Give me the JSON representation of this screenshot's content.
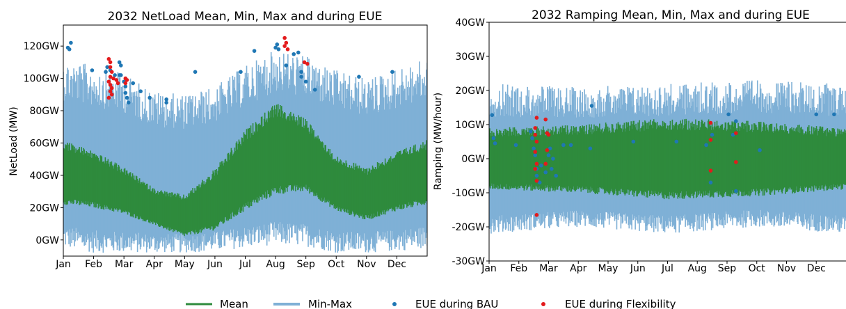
{
  "colors": {
    "mean": "#2e8b3d",
    "minmax": "#7fb0d6",
    "eue_bau": "#1f77b4",
    "eue_flex": "#e31a1c"
  },
  "legend": {
    "mean": "Mean",
    "minmax": "Min-Max",
    "eue_bau": "EUE during BAU",
    "eue_flex": "EUE during Flexibility"
  },
  "chart_data": [
    {
      "type": "area",
      "title": "2032 NetLoad Mean, Min, Max and during EUE",
      "xlabel": "",
      "ylabel": "NetLoad (MW)",
      "x_ticks": [
        "Jan",
        "Feb",
        "Mar",
        "Apr",
        "May",
        "Jun",
        "Jul",
        "Aug",
        "Sep",
        "Oct",
        "Nov",
        "Dec"
      ],
      "y_ticks": [
        "0GW",
        "20GW",
        "40GW",
        "60GW",
        "80GW",
        "100GW",
        "120GW"
      ],
      "y_tick_values": [
        0,
        20,
        40,
        60,
        80,
        100,
        120
      ],
      "ylim": [
        -10,
        133
      ],
      "xlim_month": [
        0,
        12
      ],
      "grid": false,
      "series": [
        {
          "name": "Mean",
          "kind": "band",
          "month": [
            0,
            1,
            2,
            3,
            4,
            5,
            6,
            7,
            8,
            9,
            10,
            11,
            12
          ],
          "low": [
            22,
            20,
            16,
            9,
            2,
            6,
            18,
            28,
            30,
            18,
            12,
            18,
            22
          ],
          "high": [
            62,
            55,
            45,
            32,
            28,
            44,
            68,
            85,
            75,
            52,
            45,
            55,
            62
          ]
        },
        {
          "name": "Min-Max",
          "kind": "band",
          "month": [
            0,
            1,
            2,
            3,
            4,
            5,
            6,
            7,
            8,
            9,
            10,
            11,
            12
          ],
          "low": [
            -5,
            -8,
            -8,
            -8,
            -8,
            -7,
            -5,
            -3,
            -4,
            -8,
            -8,
            -7,
            -5
          ],
          "high": [
            112,
            108,
            103,
            92,
            90,
            95,
            108,
            118,
            114,
            105,
            100,
            106,
            112
          ]
        },
        {
          "name": "EUE during BAU",
          "kind": "points",
          "points": [
            [
              0.15,
              119
            ],
            [
              0.25,
              122
            ],
            [
              0.2,
              118
            ],
            [
              0.95,
              105
            ],
            [
              1.4,
              104
            ],
            [
              1.45,
              107
            ],
            [
              1.55,
              105
            ],
            [
              1.7,
              102
            ],
            [
              1.85,
              102
            ],
            [
              1.85,
              110
            ],
            [
              1.9,
              108
            ],
            [
              1.9,
              102
            ],
            [
              2.0,
              98
            ],
            [
              2.05,
              95
            ],
            [
              2.05,
              91
            ],
            [
              2.1,
              88
            ],
            [
              2.15,
              85
            ],
            [
              2.3,
              97
            ],
            [
              2.55,
              92
            ],
            [
              2.85,
              88
            ],
            [
              3.4,
              87
            ],
            [
              3.4,
              85
            ],
            [
              4.35,
              104
            ],
            [
              5.85,
              104
            ],
            [
              6.3,
              117
            ],
            [
              7.0,
              119
            ],
            [
              7.05,
              121
            ],
            [
              7.1,
              118
            ],
            [
              7.35,
              108
            ],
            [
              7.6,
              115
            ],
            [
              7.75,
              116
            ],
            [
              7.85,
              104
            ],
            [
              7.85,
              101
            ],
            [
              8.0,
              98
            ],
            [
              8.3,
              93
            ],
            [
              9.75,
              101
            ],
            [
              10.85,
              104
            ]
          ]
        },
        {
          "name": "EUE during Flexibility",
          "kind": "points",
          "points": [
            [
              1.5,
              112
            ],
            [
              1.55,
              110
            ],
            [
              1.55,
              107
            ],
            [
              1.6,
              104
            ],
            [
              1.55,
              101
            ],
            [
              1.5,
              98
            ],
            [
              1.55,
              96
            ],
            [
              1.6,
              94
            ],
            [
              1.55,
              92
            ],
            [
              1.6,
              90
            ],
            [
              1.5,
              88
            ],
            [
              1.65,
              100
            ],
            [
              1.75,
              99
            ],
            [
              1.8,
              97
            ],
            [
              2.05,
              100
            ],
            [
              2.1,
              99
            ],
            [
              2.05,
              97
            ],
            [
              7.3,
              125
            ],
            [
              7.35,
              122
            ],
            [
              7.3,
              120
            ],
            [
              7.4,
              118
            ],
            [
              7.95,
              110
            ],
            [
              8.05,
              109
            ]
          ]
        }
      ]
    },
    {
      "type": "area",
      "title": "2032 Ramping Mean, Min, Max and during EUE",
      "xlabel": "",
      "ylabel": "Ramping (MW/hour)",
      "x_ticks": [
        "Jan",
        "Feb",
        "Mar",
        "Apr",
        "May",
        "Jun",
        "Jul",
        "Aug",
        "Sep",
        "Oct",
        "Nov",
        "Dec"
      ],
      "y_ticks": [
        "-30GW",
        "-20GW",
        "-10GW",
        "0GW",
        "10GW",
        "20GW",
        "30GW",
        "40GW"
      ],
      "y_tick_values": [
        -30,
        -20,
        -10,
        0,
        10,
        20,
        30,
        40
      ],
      "ylim": [
        -30,
        40
      ],
      "xlim_month": [
        0,
        12
      ],
      "grid": false,
      "series": [
        {
          "name": "Mean",
          "kind": "band",
          "month": [
            0,
            3,
            6,
            9,
            12
          ],
          "low": [
            -9,
            -10,
            -12,
            -11,
            -9
          ],
          "high": [
            9,
            10,
            12,
            11,
            9
          ]
        },
        {
          "name": "Min-Max",
          "kind": "band",
          "month": [
            0,
            3,
            6,
            9,
            12
          ],
          "low": [
            -22,
            -20,
            -22,
            -20,
            -22
          ],
          "high": [
            22,
            21,
            22,
            23,
            22
          ]
        },
        {
          "name": "EUE during BAU",
          "kind": "points",
          "points": [
            [
              0.1,
              12.8
            ],
            [
              0.15,
              6
            ],
            [
              0.2,
              4.5
            ],
            [
              0.9,
              4
            ],
            [
              1.4,
              8
            ],
            [
              1.45,
              6
            ],
            [
              1.5,
              3
            ],
            [
              1.55,
              1
            ],
            [
              1.6,
              -3
            ],
            [
              1.6,
              -5
            ],
            [
              1.7,
              -7
            ],
            [
              1.75,
              -2
            ],
            [
              1.9,
              -4
            ],
            [
              2.0,
              1
            ],
            [
              2.05,
              3
            ],
            [
              2.1,
              -3
            ],
            [
              2.15,
              0
            ],
            [
              2.25,
              -5
            ],
            [
              2.5,
              4
            ],
            [
              2.75,
              4
            ],
            [
              3.4,
              3
            ],
            [
              3.45,
              15.5
            ],
            [
              4.85,
              5
            ],
            [
              6.3,
              5
            ],
            [
              7.3,
              4
            ],
            [
              7.45,
              -7
            ],
            [
              7.5,
              7
            ],
            [
              8.05,
              13
            ],
            [
              8.2,
              7
            ],
            [
              8.3,
              11
            ],
            [
              8.3,
              -9.5
            ],
            [
              9.1,
              2.5
            ],
            [
              11.0,
              13
            ],
            [
              11.6,
              13
            ]
          ]
        },
        {
          "name": "EUE during Flexibility",
          "kind": "points",
          "points": [
            [
              1.6,
              12
            ],
            [
              1.55,
              9
            ],
            [
              1.55,
              7
            ],
            [
              1.6,
              5
            ],
            [
              1.55,
              2
            ],
            [
              1.6,
              -1.5
            ],
            [
              1.55,
              -3
            ],
            [
              1.6,
              -6.5
            ],
            [
              1.6,
              -16.5
            ],
            [
              1.9,
              11.5
            ],
            [
              1.95,
              7.5
            ],
            [
              2.0,
              7
            ],
            [
              1.95,
              2.5
            ],
            [
              1.9,
              -1.5
            ],
            [
              7.45,
              10.5
            ],
            [
              7.45,
              5.5
            ],
            [
              7.45,
              -3.5
            ],
            [
              8.3,
              7.5
            ],
            [
              8.3,
              -1
            ]
          ]
        }
      ]
    }
  ]
}
